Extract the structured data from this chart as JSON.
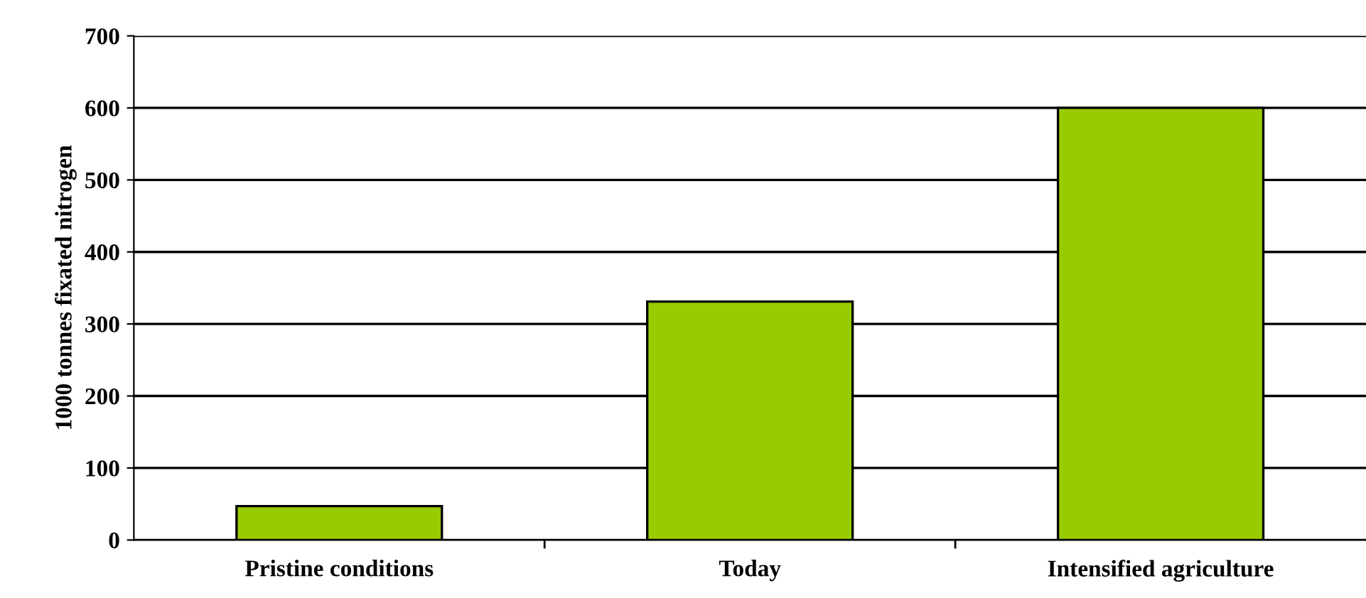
{
  "chart_data": {
    "type": "bar",
    "ylabel": "1000 tonnes fixated nitrogen",
    "categories": [
      "Pristine conditions",
      "Today",
      "Intensified agriculture"
    ],
    "values": [
      47,
      331,
      600
    ],
    "color": "#99cc00",
    "ylim": [
      0,
      700
    ],
    "yticks": [
      0,
      100,
      200,
      300,
      400,
      500,
      600,
      700
    ],
    "grid": "y"
  }
}
